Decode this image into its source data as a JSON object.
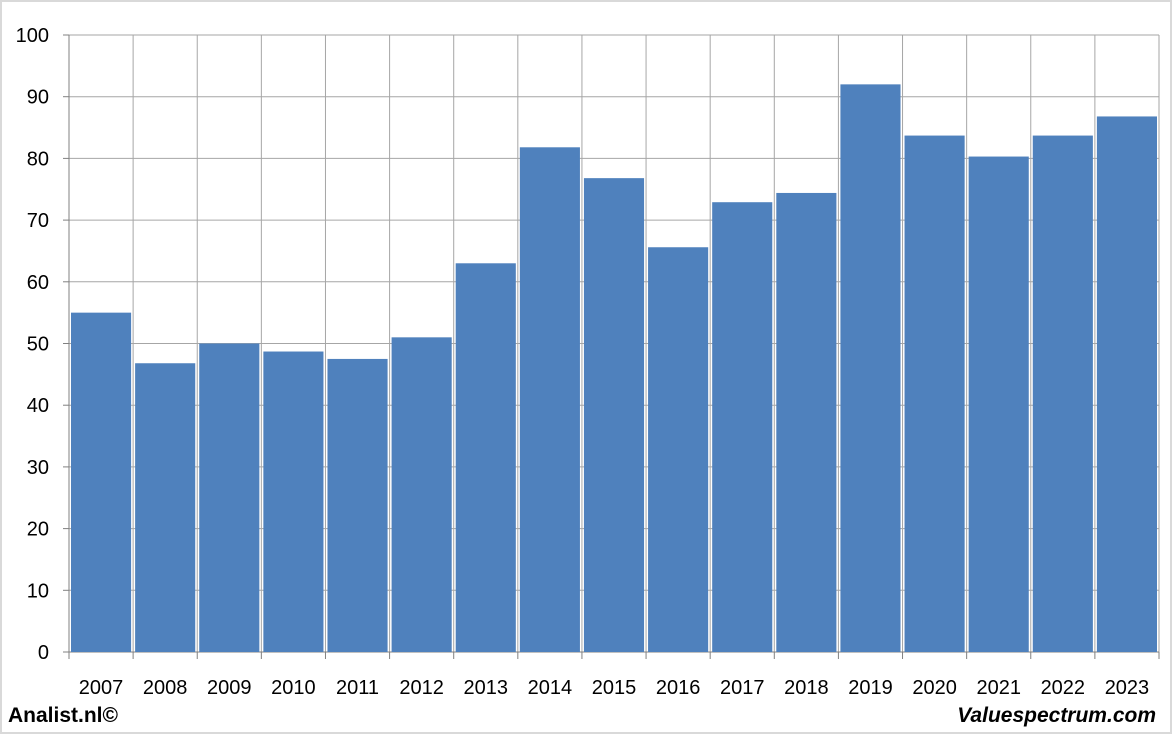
{
  "footer": {
    "left_label": "Analist.nl©",
    "right_label": "Valuespectrum.com"
  },
  "chart_data": {
    "type": "bar",
    "categories": [
      "2007",
      "2008",
      "2009",
      "2010",
      "2011",
      "2012",
      "2013",
      "2014",
      "2015",
      "2016",
      "2017",
      "2018",
      "2019",
      "2020",
      "2021",
      "2022",
      "2023"
    ],
    "values": [
      55,
      46.8,
      50,
      48.7,
      47.5,
      51,
      63,
      81.8,
      76.8,
      65.6,
      72.9,
      74.4,
      92,
      83.7,
      80.3,
      83.7,
      86.8
    ],
    "title": "",
    "xlabel": "",
    "ylabel": "",
    "ylim": [
      0,
      100
    ],
    "yticks": [
      0,
      10,
      20,
      30,
      40,
      50,
      60,
      70,
      80,
      90,
      100
    ],
    "grid": true,
    "colors": {
      "bar": "#4F81BD",
      "grid": "#A6A6A6",
      "axis": "#808080"
    }
  }
}
